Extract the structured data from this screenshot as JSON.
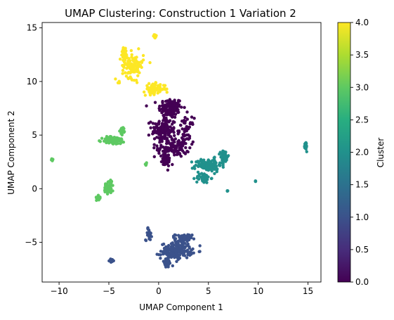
{
  "chart_data": {
    "type": "scatter",
    "title": "UMAP Clustering: Construction 1 Variation 2",
    "xlabel": "UMAP Component 1",
    "ylabel": "UMAP Component 2",
    "xlim": [
      -11.7,
      16.3
    ],
    "ylim": [
      -8.7,
      15.5
    ],
    "xticks": [
      -10,
      -5,
      0,
      5,
      10,
      15
    ],
    "xtick_labels": [
      "−10",
      "−5",
      "0",
      "5",
      "10",
      "15"
    ],
    "yticks": [
      -5,
      0,
      5,
      10,
      15
    ],
    "ytick_labels": [
      "−5",
      "0",
      "5",
      "10",
      "15"
    ],
    "grid": false,
    "colorbar": {
      "label": "Cluster",
      "range": [
        0.0,
        4.0
      ],
      "ticks": [
        0.0,
        0.5,
        1.0,
        1.5,
        2.0,
        2.5,
        3.0,
        3.5,
        4.0
      ],
      "tick_labels": [
        "0.0",
        "0.5",
        "1.0",
        "1.5",
        "2.0",
        "2.5",
        "3.0",
        "3.5",
        "4.0"
      ],
      "colormap": "viridis"
    },
    "series": [
      {
        "name": "Cluster 0",
        "cluster": 0,
        "color": "#440154",
        "regions": [
          {
            "cx": 1.2,
            "cy": 7.5,
            "sx": 1.0,
            "sy": 0.8,
            "n": 130
          },
          {
            "cx": 0.5,
            "cy": 5.5,
            "sx": 1.0,
            "sy": 1.0,
            "n": 140
          },
          {
            "cx": 1.5,
            "cy": 3.8,
            "sx": 1.3,
            "sy": 0.7,
            "n": 110
          },
          {
            "cx": 0.7,
            "cy": 2.6,
            "sx": 0.4,
            "sy": 0.5,
            "n": 40
          },
          {
            "cx": 2.8,
            "cy": 5.5,
            "sx": 0.6,
            "sy": 0.9,
            "n": 50
          }
        ]
      },
      {
        "name": "Cluster 1",
        "cluster": 1,
        "color": "#3b528b",
        "regions": [
          {
            "cx": 1.8,
            "cy": -5.8,
            "sx": 1.3,
            "sy": 0.6,
            "n": 170
          },
          {
            "cx": 2.5,
            "cy": -4.7,
            "sx": 0.7,
            "sy": 0.4,
            "n": 60
          },
          {
            "cx": 0.8,
            "cy": -6.9,
            "sx": 0.4,
            "sy": 0.4,
            "n": 30
          },
          {
            "cx": -1.0,
            "cy": -4.2,
            "sx": 0.25,
            "sy": 0.5,
            "n": 30
          },
          {
            "cx": -4.7,
            "cy": -6.7,
            "sx": 0.2,
            "sy": 0.1,
            "n": 15
          }
        ]
      },
      {
        "name": "Cluster 2",
        "cluster": 2,
        "color": "#21918c",
        "regions": [
          {
            "cx": 5.0,
            "cy": 2.2,
            "sx": 1.1,
            "sy": 0.5,
            "n": 120
          },
          {
            "cx": 6.6,
            "cy": 3.0,
            "sx": 0.3,
            "sy": 0.5,
            "n": 40
          },
          {
            "cx": 4.5,
            "cy": 1.0,
            "sx": 0.6,
            "sy": 0.4,
            "n": 40
          },
          {
            "cx": 14.8,
            "cy": 3.9,
            "sx": 0.08,
            "sy": 0.4,
            "n": 20
          },
          {
            "cx": 9.7,
            "cy": 0.7,
            "sx": 0.05,
            "sy": 0.05,
            "n": 5
          },
          {
            "cx": 6.9,
            "cy": -0.2,
            "sx": 0.05,
            "sy": 0.05,
            "n": 4
          }
        ]
      },
      {
        "name": "Cluster 3",
        "cluster": 3,
        "color": "#5ec962",
        "regions": [
          {
            "cx": -4.5,
            "cy": 4.5,
            "sx": 1.0,
            "sy": 0.3,
            "n": 90
          },
          {
            "cx": -3.6,
            "cy": 5.4,
            "sx": 0.2,
            "sy": 0.3,
            "n": 20
          },
          {
            "cx": -5.0,
            "cy": 0.2,
            "sx": 0.4,
            "sy": 0.6,
            "n": 45
          },
          {
            "cx": -6.0,
            "cy": -0.8,
            "sx": 0.2,
            "sy": 0.2,
            "n": 15
          },
          {
            "cx": -10.7,
            "cy": 2.7,
            "sx": 0.1,
            "sy": 0.07,
            "n": 8
          },
          {
            "cx": -1.3,
            "cy": 2.3,
            "sx": 0.1,
            "sy": 0.1,
            "n": 8
          }
        ]
      },
      {
        "name": "Cluster 4",
        "cluster": 4,
        "color": "#fde725",
        "regions": [
          {
            "cx": -2.6,
            "cy": 11.5,
            "sx": 0.9,
            "sy": 1.0,
            "n": 110
          },
          {
            "cx": -0.4,
            "cy": 9.3,
            "sx": 0.9,
            "sy": 0.4,
            "n": 80
          },
          {
            "cx": -3.4,
            "cy": 12.6,
            "sx": 0.2,
            "sy": 0.5,
            "n": 30
          },
          {
            "cx": -0.4,
            "cy": 14.2,
            "sx": 0.15,
            "sy": 0.2,
            "n": 15
          },
          {
            "cx": -4.0,
            "cy": 9.9,
            "sx": 0.08,
            "sy": 0.1,
            "n": 5
          }
        ]
      }
    ]
  }
}
